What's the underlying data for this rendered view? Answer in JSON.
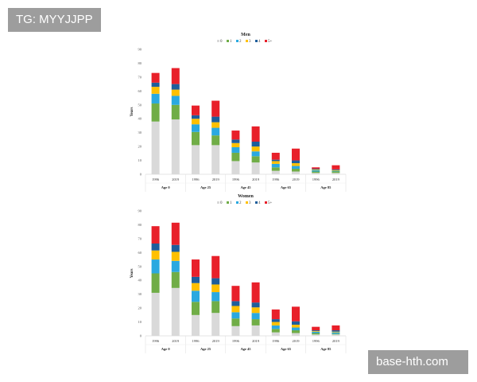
{
  "watermarks": {
    "top_left": "TG: MYYJJPP",
    "bottom_right": "base-hth.com"
  },
  "colors": {
    "0": "#d9d9d9",
    "1": "#70ad47",
    "2": "#2aa9e0",
    "3": "#ffc000",
    "4": "#1f5e9b",
    "5+": "#e8202a"
  },
  "chart_data": [
    {
      "type": "bar",
      "stacked": true,
      "title": "Men",
      "ylabel": "Years",
      "ylim": [
        0,
        90
      ],
      "yticks": [
        0,
        10,
        20,
        30,
        40,
        50,
        60,
        70,
        80,
        90
      ],
      "legend_placement": "top-center",
      "legend": [
        "0",
        "1",
        "2",
        "3",
        "4",
        "5+"
      ],
      "groups": [
        "Age 0",
        "Age 25",
        "Age 45",
        "Age 65",
        "Age 85"
      ],
      "years": [
        "1996",
        "2019"
      ],
      "series": [
        {
          "name": "0",
          "values": [
            [
              38,
              39.5
            ],
            [
              21,
              21
            ],
            [
              9.5,
              8.5
            ],
            [
              2.5,
              2
            ],
            [
              1,
              1
            ]
          ]
        },
        {
          "name": "1",
          "values": [
            [
              13,
              10.5
            ],
            [
              9.5,
              7
            ],
            [
              6,
              4.5
            ],
            [
              2.5,
              2
            ],
            [
              1,
              1
            ]
          ]
        },
        {
          "name": "2",
          "values": [
            [
              7,
              6.5
            ],
            [
              5.5,
              5.5
            ],
            [
              4,
              3.5
            ],
            [
              2.5,
              2
            ],
            [
              1,
              0.5
            ]
          ]
        },
        {
          "name": "3",
          "values": [
            [
              5,
              4.5
            ],
            [
              4,
              4
            ],
            [
              3,
              3.5
            ],
            [
              2,
              2
            ],
            [
              0.5,
              0.5
            ]
          ]
        },
        {
          "name": "4",
          "values": [
            [
              3,
              4
            ],
            [
              2.5,
              4
            ],
            [
              2.5,
              3.5
            ],
            [
              1,
              2
            ],
            [
              0.5,
              0.5
            ]
          ]
        },
        {
          "name": "5+",
          "values": [
            [
              7,
              11.5
            ],
            [
              7,
              11.5
            ],
            [
              6.5,
              11
            ],
            [
              5,
              8.5
            ],
            [
              1,
              3
            ]
          ]
        }
      ]
    },
    {
      "type": "bar",
      "stacked": true,
      "title": "Women",
      "ylabel": "Years",
      "ylim": [
        0,
        90
      ],
      "yticks": [
        0,
        10,
        20,
        30,
        40,
        50,
        60,
        70,
        80,
        90
      ],
      "legend_placement": "top-center",
      "legend": [
        "0",
        "1",
        "2",
        "3",
        "4",
        "5+"
      ],
      "groups": [
        "Age 0",
        "Age 25",
        "Age 45",
        "Age 65",
        "Age 85"
      ],
      "years": [
        "1996",
        "2019"
      ],
      "series": [
        {
          "name": "0",
          "values": [
            [
              31,
              34.5
            ],
            [
              15,
              16.5
            ],
            [
              7,
              7.5
            ],
            [
              2.5,
              2
            ],
            [
              1,
              1
            ]
          ]
        },
        {
          "name": "1",
          "values": [
            [
              14,
              11.5
            ],
            [
              9.5,
              8.5
            ],
            [
              5.5,
              4.5
            ],
            [
              2.5,
              2
            ],
            [
              1,
              0.5
            ]
          ]
        },
        {
          "name": "2",
          "values": [
            [
              10,
              8
            ],
            [
              8,
              6.5
            ],
            [
              4.5,
              4.5
            ],
            [
              2.5,
              2
            ],
            [
              1,
              1
            ]
          ]
        },
        {
          "name": "3",
          "values": [
            [
              6.5,
              6.5
            ],
            [
              5.5,
              5.5
            ],
            [
              4.5,
              4
            ],
            [
              2.5,
              2
            ],
            [
              0.5,
              0.5
            ]
          ]
        },
        {
          "name": "4",
          "values": [
            [
              5,
              5
            ],
            [
              4.5,
              4.5
            ],
            [
              3.5,
              3.5
            ],
            [
              2,
              2.5
            ],
            [
              0.5,
              1
            ]
          ]
        },
        {
          "name": "5+",
          "values": [
            [
              12.5,
              16
            ],
            [
              12.5,
              16
            ],
            [
              11,
              14.5
            ],
            [
              7,
              10.5
            ],
            [
              2.5,
              3.5
            ]
          ]
        }
      ]
    }
  ]
}
